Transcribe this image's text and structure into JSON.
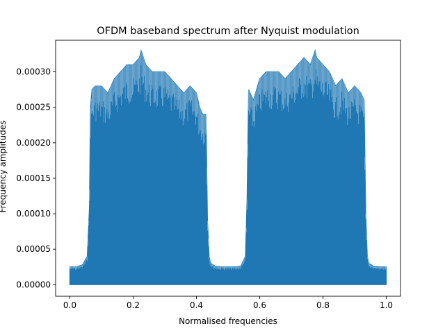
{
  "chart_data": {
    "type": "area",
    "title": "OFDM baseband spectrum after Nyquist modulation",
    "xlabel": "Normalised frequencies",
    "ylabel": "Frequency amplitudes",
    "xlim": [
      -0.045,
      1.045
    ],
    "ylim": [
      -1.63e-05,
      0.0003446
    ],
    "xticks": [
      0.0,
      0.2,
      0.4,
      0.6,
      0.8,
      1.0
    ],
    "xtick_labels": [
      "0.0",
      "0.2",
      "0.4",
      "0.6",
      "0.8",
      "1.0"
    ],
    "yticks": [
      0.0,
      5e-05,
      0.0001,
      0.00015,
      0.0002,
      0.00025,
      0.0003
    ],
    "ytick_labels": [
      "0.00000",
      "0.00005",
      "0.00010",
      "0.00015",
      "0.00020",
      "0.00025",
      "0.00030"
    ],
    "grid": false,
    "legend": "none",
    "series_color": "#1f77b4",
    "envelope": {
      "x": [
        0.0,
        0.02,
        0.04,
        0.055,
        0.062,
        0.065,
        0.07,
        0.08,
        0.1,
        0.12,
        0.14,
        0.16,
        0.18,
        0.2,
        0.22,
        0.225,
        0.24,
        0.26,
        0.28,
        0.3,
        0.32,
        0.34,
        0.36,
        0.38,
        0.4,
        0.41,
        0.42,
        0.43,
        0.435,
        0.44,
        0.445,
        0.46,
        0.48,
        0.5,
        0.52,
        0.54,
        0.555,
        0.56,
        0.565,
        0.57,
        0.58,
        0.6,
        0.62,
        0.64,
        0.66,
        0.68,
        0.7,
        0.72,
        0.74,
        0.76,
        0.775,
        0.78,
        0.8,
        0.82,
        0.84,
        0.86,
        0.88,
        0.9,
        0.92,
        0.93,
        0.935,
        0.94,
        0.945,
        0.96,
        0.98,
        1.0
      ],
      "upper": [
        2.5e-05,
        2.5e-05,
        2.8e-05,
        4e-05,
        0.00011,
        0.00025,
        0.000275,
        0.00028,
        0.00028,
        0.00027,
        0.00029,
        0.0003,
        0.00031,
        0.00031,
        0.00032,
        0.00033,
        0.00031,
        0.0003,
        0.0003,
        0.0003,
        0.00029,
        0.00028,
        0.00027,
        0.00028,
        0.00027,
        0.00025,
        0.00024,
        0.00024,
        9e-05,
        4e-05,
        3e-05,
        2.6e-05,
        2.5e-05,
        2.5e-05,
        2.5e-05,
        2.6e-05,
        4e-05,
        0.00012,
        0.000275,
        0.00027,
        0.00026,
        0.00029,
        0.0003,
        0.0003,
        0.0003,
        0.00029,
        0.0003,
        0.00031,
        0.00032,
        0.00031,
        0.00033,
        0.00032,
        0.00031,
        0.0003,
        0.00028,
        0.00029,
        0.00027,
        0.00028,
        0.00027,
        0.00026,
        0.0001,
        4e-05,
        3e-05,
        2.6e-05,
        2.5e-05,
        2.5e-05
      ],
      "lower": 0.0
    }
  }
}
